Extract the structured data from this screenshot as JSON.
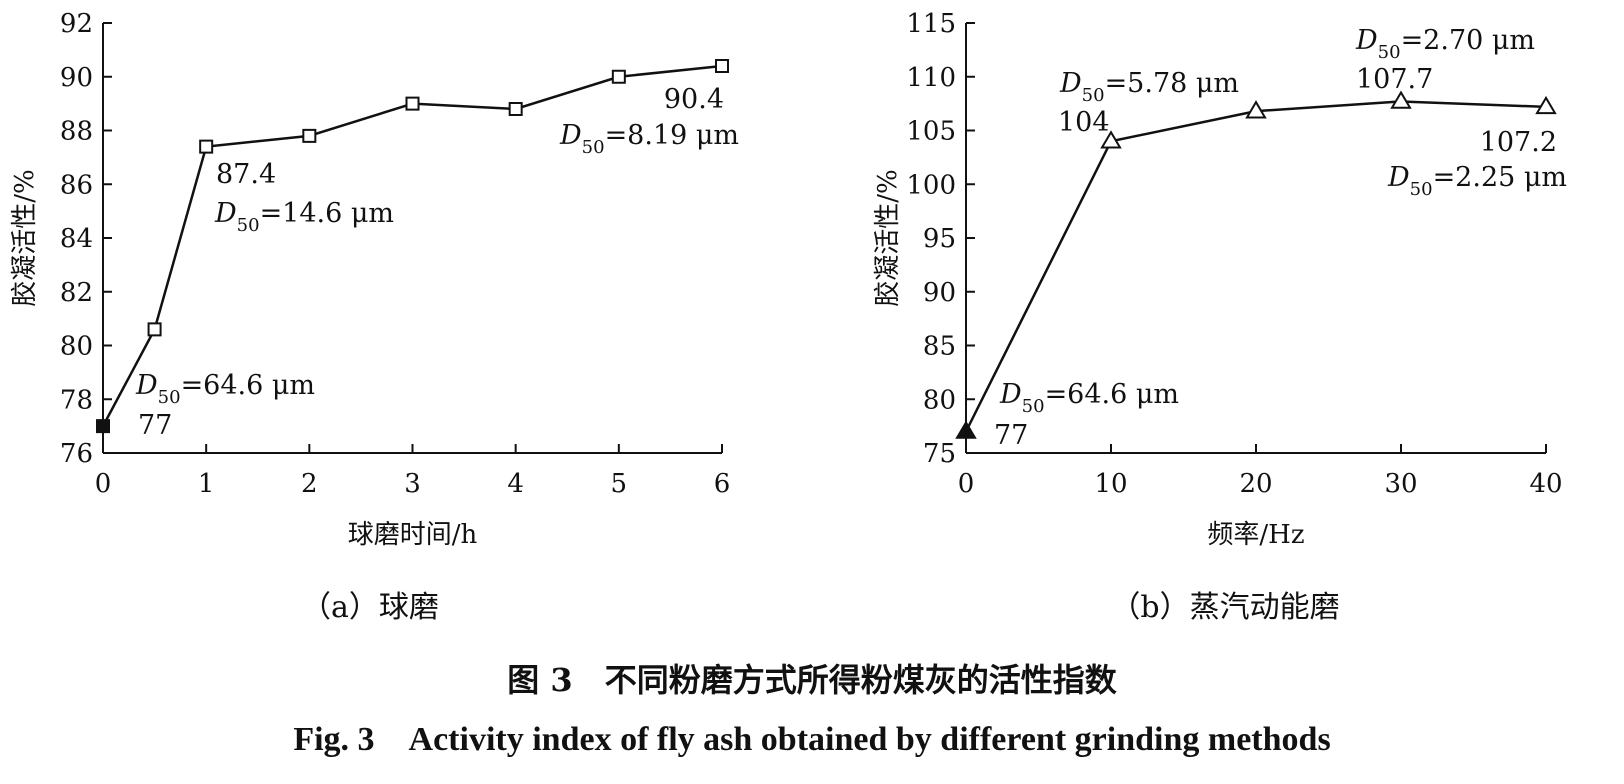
{
  "chart_data": [
    {
      "type": "line",
      "subtitle": "（a）球磨",
      "xlabel": "球磨时间/h",
      "ylabel": "胶凝活性/%",
      "xlim": [
        0,
        6
      ],
      "ylim": [
        76,
        92
      ],
      "xticks": [
        "0",
        "1",
        "2",
        "3",
        "4",
        "5",
        "6"
      ],
      "yticks": [
        "76",
        "78",
        "80",
        "82",
        "84",
        "86",
        "88",
        "90",
        "92"
      ],
      "marker": "square",
      "x": [
        0,
        0.5,
        1,
        2,
        3,
        4,
        5,
        6
      ],
      "y": [
        77,
        80.6,
        87.4,
        87.8,
        89.0,
        88.8,
        90.0,
        90.4
      ],
      "annotations": [
        {
          "d50_prefix": "D",
          "d50_sub": "50",
          "d50_rest": "=64.6 μm",
          "value": "77"
        },
        {
          "value": "87.4",
          "d50_prefix": "D",
          "d50_sub": "50",
          "d50_rest": "=14.6 μm"
        },
        {
          "value": "90.4",
          "d50_prefix": "D",
          "d50_sub": "50",
          "d50_rest": "=8.19 μm"
        }
      ]
    },
    {
      "type": "line",
      "subtitle": "（b）蒸汽动能磨",
      "xlabel": "频率/Hz",
      "ylabel": "胶凝活性/%",
      "xlim": [
        0,
        40
      ],
      "ylim": [
        75,
        115
      ],
      "xticks": [
        "0",
        "10",
        "20",
        "30",
        "40"
      ],
      "yticks": [
        "75",
        "80",
        "85",
        "90",
        "95",
        "100",
        "105",
        "110",
        "115"
      ],
      "marker": "triangle",
      "x": [
        0,
        10,
        20,
        30,
        40
      ],
      "y": [
        77,
        104,
        106.8,
        107.7,
        107.2
      ],
      "annotations": [
        {
          "d50_prefix": "D",
          "d50_sub": "50",
          "d50_rest": "=64.6 μm",
          "value": "77"
        },
        {
          "d50_prefix": "D",
          "d50_sub": "50",
          "d50_rest": "=5.78 μm",
          "value": "104"
        },
        {
          "d50_prefix": "D",
          "d50_sub": "50",
          "d50_rest": "=2.70 μm",
          "value": "107.7"
        },
        {
          "value": "107.2",
          "d50_prefix": "D",
          "d50_sub": "50",
          "d50_rest": "=2.25 μm"
        }
      ]
    }
  ],
  "caption": {
    "cn": "图 3　不同粉磨方式所得粉煤灰的活性指数",
    "en": "Fig. 3　Activity index of fly ash obtained by different grinding methods"
  }
}
